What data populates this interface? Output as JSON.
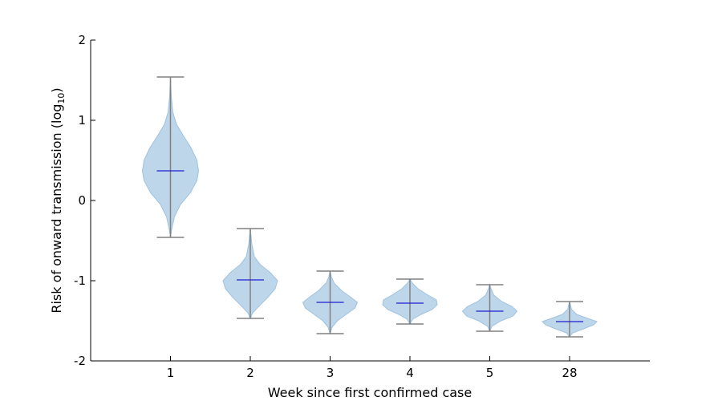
{
  "chart_data": {
    "type": "violin",
    "title": "",
    "xlabel": "Week since first confirmed case",
    "ylabel_main": "Risk of onward transmission (log",
    "ylabel_sub": "10",
    "ylabel_close": ")",
    "ylim": [
      -2,
      2
    ],
    "yticks": [
      2,
      1,
      0,
      -1,
      -2
    ],
    "categories": [
      "1",
      "2",
      "3",
      "4",
      "5",
      "28"
    ],
    "grid": false,
    "colors": {
      "body_fill": "#b9d4e9",
      "body_stroke": "#9fc3e1",
      "whisker": "#808080",
      "median": "#1f1fd0",
      "axis": "#000000"
    },
    "violins": [
      {
        "category": "1",
        "min": -0.46,
        "max": 1.54,
        "median": 0.37,
        "profile": [
          [
            -0.46,
            0
          ],
          [
            -0.36,
            0.03
          ],
          [
            -0.2,
            0.1
          ],
          [
            -0.05,
            0.25
          ],
          [
            0.1,
            0.5
          ],
          [
            0.25,
            0.66
          ],
          [
            0.37,
            0.7
          ],
          [
            0.5,
            0.66
          ],
          [
            0.65,
            0.52
          ],
          [
            0.8,
            0.33
          ],
          [
            0.95,
            0.15
          ],
          [
            1.1,
            0.06
          ],
          [
            1.3,
            0.02
          ],
          [
            1.54,
            0
          ]
        ]
      },
      {
        "category": "2",
        "min": -1.47,
        "max": -0.35,
        "median": -0.99,
        "profile": [
          [
            -1.47,
            0
          ],
          [
            -1.4,
            0.06
          ],
          [
            -1.3,
            0.25
          ],
          [
            -1.2,
            0.45
          ],
          [
            -1.1,
            0.62
          ],
          [
            -1.0,
            0.68
          ],
          [
            -0.9,
            0.5
          ],
          [
            -0.8,
            0.25
          ],
          [
            -0.7,
            0.1
          ],
          [
            -0.55,
            0.04
          ],
          [
            -0.35,
            0
          ]
        ]
      },
      {
        "category": "3",
        "min": -1.66,
        "max": -0.88,
        "median": -1.27,
        "profile": [
          [
            -1.66,
            0
          ],
          [
            -1.58,
            0.05
          ],
          [
            -1.5,
            0.18
          ],
          [
            -1.42,
            0.4
          ],
          [
            -1.34,
            0.62
          ],
          [
            -1.27,
            0.68
          ],
          [
            -1.2,
            0.5
          ],
          [
            -1.12,
            0.28
          ],
          [
            -1.03,
            0.1
          ],
          [
            -0.95,
            0.03
          ],
          [
            -0.88,
            0
          ]
        ]
      },
      {
        "category": "4",
        "min": -1.54,
        "max": -0.98,
        "median": -1.28,
        "profile": [
          [
            -1.54,
            0
          ],
          [
            -1.48,
            0.07
          ],
          [
            -1.42,
            0.28
          ],
          [
            -1.36,
            0.55
          ],
          [
            -1.3,
            0.68
          ],
          [
            -1.24,
            0.66
          ],
          [
            -1.18,
            0.45
          ],
          [
            -1.1,
            0.2
          ],
          [
            -1.03,
            0.06
          ],
          [
            -0.98,
            0
          ]
        ]
      },
      {
        "category": "5",
        "min": -1.63,
        "max": -1.05,
        "median": -1.38,
        "profile": [
          [
            -1.63,
            0
          ],
          [
            -1.57,
            0.05
          ],
          [
            -1.5,
            0.28
          ],
          [
            -1.44,
            0.58
          ],
          [
            -1.38,
            0.68
          ],
          [
            -1.32,
            0.55
          ],
          [
            -1.26,
            0.3
          ],
          [
            -1.18,
            0.1
          ],
          [
            -1.1,
            0.03
          ],
          [
            -1.05,
            0
          ]
        ]
      },
      {
        "category": "28",
        "min": -1.7,
        "max": -1.26,
        "median": -1.51,
        "profile": [
          [
            -1.7,
            0
          ],
          [
            -1.65,
            0.08
          ],
          [
            -1.6,
            0.35
          ],
          [
            -1.55,
            0.6
          ],
          [
            -1.51,
            0.68
          ],
          [
            -1.47,
            0.45
          ],
          [
            -1.42,
            0.18
          ],
          [
            -1.36,
            0.05
          ],
          [
            -1.3,
            0.02
          ],
          [
            -1.26,
            0
          ]
        ]
      }
    ]
  }
}
